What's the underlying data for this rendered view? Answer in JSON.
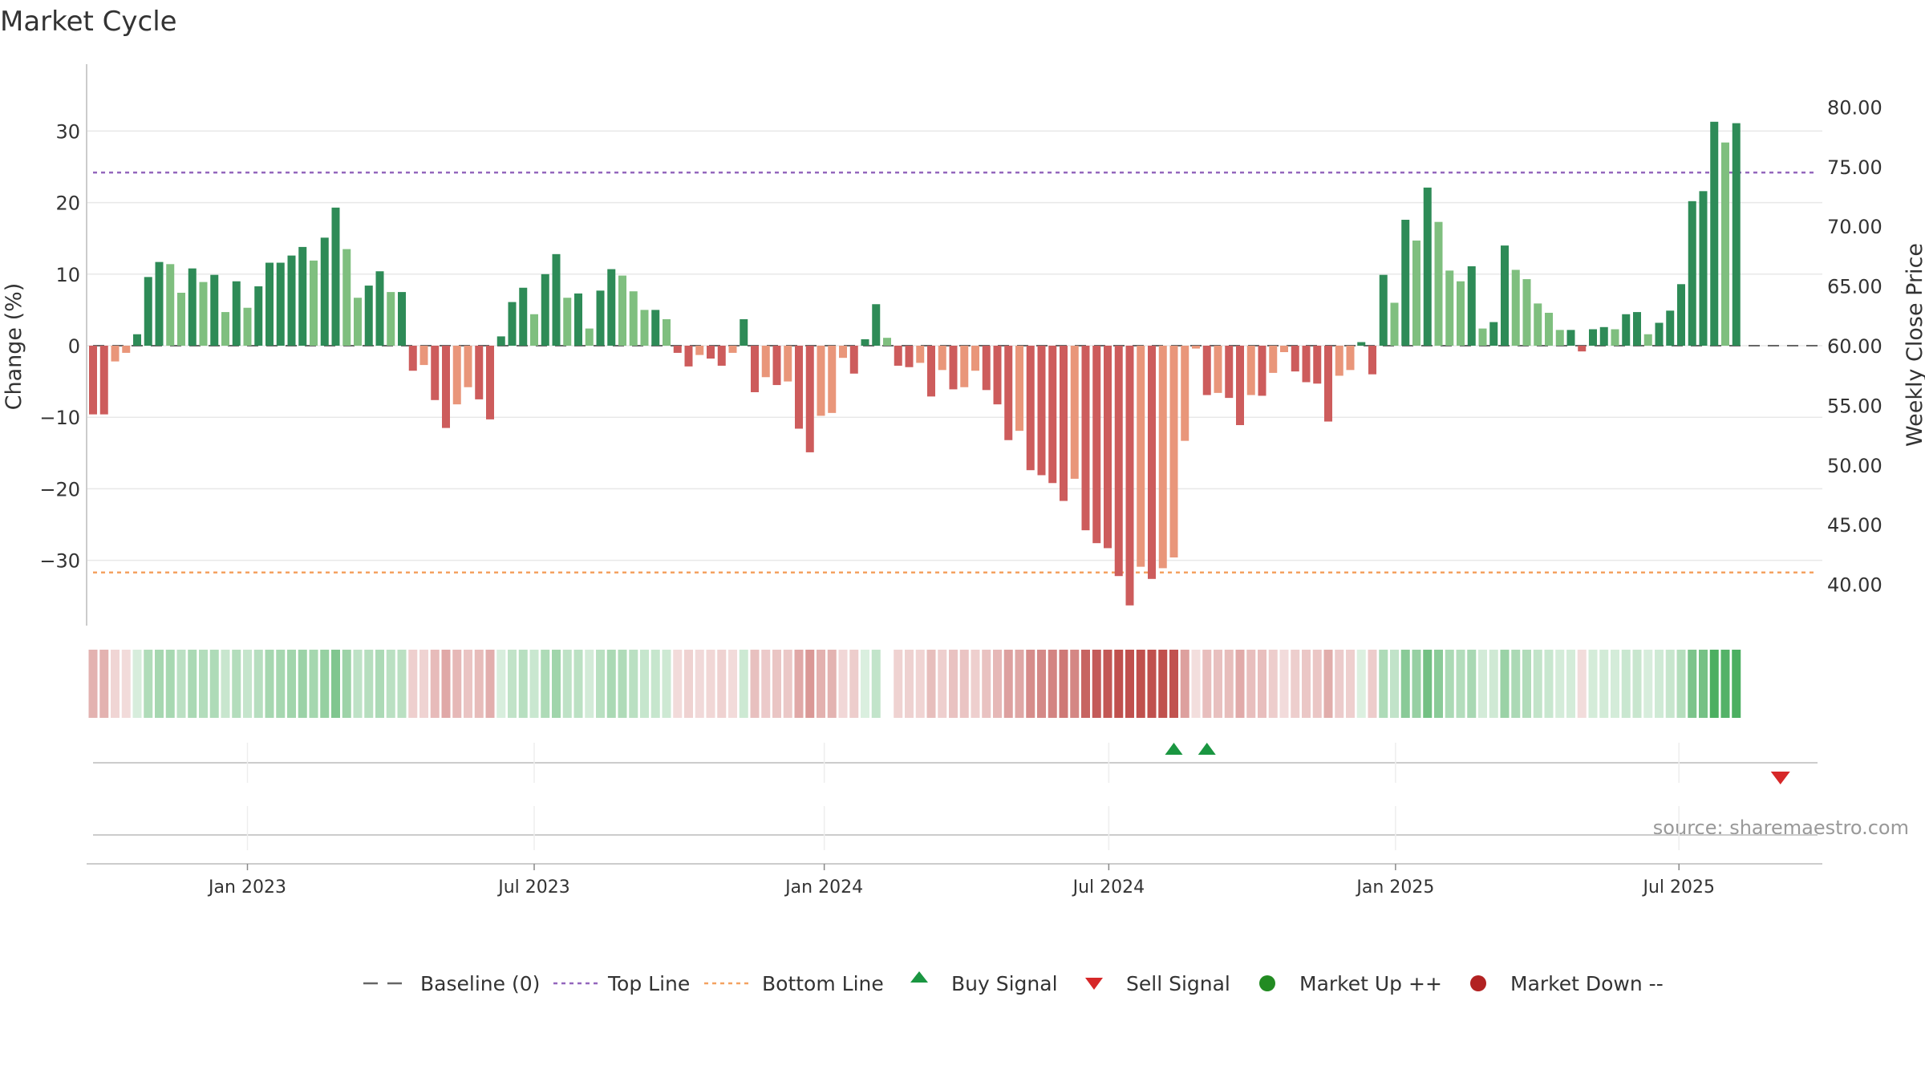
{
  "chart_data": {
    "type": "bar",
    "title": "Market Cycle",
    "ylabel_left": "Change (%)",
    "ylabel_right": "Weekly Close Price",
    "xlabel": "",
    "ylim_left": [
      -39,
      39
    ],
    "ylim_right": [
      37.0,
      82.0
    ],
    "y_ticks_left": [
      "30",
      "20",
      "10",
      "0",
      "−10",
      "−20",
      "−30"
    ],
    "y_tick_values_left": [
      30,
      20,
      10,
      0,
      -10,
      -20,
      -30
    ],
    "y_ticks_right": [
      "80.00",
      "75.00",
      "70.00",
      "65.00",
      "60.00",
      "55.00",
      "50.00",
      "45.00",
      "40.00"
    ],
    "y_tick_values_right": [
      80,
      75,
      70,
      65,
      60,
      55,
      50,
      45,
      40
    ],
    "x_tick_labels": [
      "Jan 2023",
      "Jul 2023",
      "Jan 2024",
      "Jul 2024",
      "Jan 2025",
      "Jul 2025"
    ],
    "x_tick_weeks": [
      14,
      40,
      66.3,
      92.1,
      118.1,
      143.8
    ],
    "grid": true,
    "reference_lines": [
      {
        "name": "Baseline (0)",
        "value": 0,
        "style": "dashed",
        "color": "#666666"
      },
      {
        "name": "Top Line",
        "value": 24.2,
        "style": "dotted",
        "color": "#9467bd"
      },
      {
        "name": "Bottom Line",
        "value": -31.7,
        "style": "dotted",
        "color": "#f4a261"
      }
    ],
    "series": [
      {
        "name": "Change (%)",
        "values": [
          -9.6,
          -9.6,
          -2.2,
          -1.0,
          1.6,
          9.6,
          11.7,
          11.4,
          7.4,
          10.8,
          8.9,
          9.9,
          4.7,
          9.0,
          5.3,
          8.3,
          11.6,
          11.6,
          12.6,
          13.8,
          11.9,
          15.1,
          19.3,
          13.5,
          6.7,
          8.4,
          10.4,
          7.5,
          7.5,
          -3.5,
          -2.7,
          -7.6,
          -11.5,
          -8.2,
          -5.8,
          -7.5,
          -10.3,
          1.3,
          6.1,
          8.1,
          4.4,
          10.0,
          12.8,
          6.7,
          7.3,
          2.4,
          7.7,
          10.7,
          9.8,
          7.6,
          5.0,
          5.0,
          3.7,
          -1.0,
          -2.9,
          -1.3,
          -1.8,
          -2.8,
          -1.0,
          3.7,
          -6.5,
          -4.4,
          -5.5,
          -5.0,
          -11.6,
          -14.9,
          -9.8,
          -9.4,
          -1.7,
          -3.9,
          0.9,
          5.8,
          1.1,
          -2.8,
          -3.0,
          -2.4,
          -7.1,
          -3.4,
          -6.1,
          -5.8,
          -3.5,
          -6.2,
          -8.2,
          -13.2,
          -11.9,
          -17.4,
          -18.1,
          -19.2,
          -21.7,
          -18.6,
          -25.8,
          -27.6,
          -28.3,
          -32.2,
          -36.3,
          -30.9,
          -32.6,
          -31.1,
          -29.6,
          -13.3,
          -0.4,
          -6.9,
          -6.6,
          -7.3,
          -11.1,
          -6.9,
          -7.0,
          -3.8,
          -0.9,
          -3.6,
          -5.1,
          -5.3,
          -10.6,
          -4.2,
          -3.4,
          0.5,
          -4.0,
          9.9,
          6.0,
          17.6,
          14.7,
          22.1,
          17.3,
          10.5,
          9.0,
          11.1,
          2.4,
          3.3,
          14.0,
          10.6,
          9.3,
          5.9,
          4.6,
          2.2,
          2.2,
          -0.8,
          2.3,
          2.6,
          2.3,
          4.4,
          4.7,
          1.6,
          3.2,
          4.9,
          8.6,
          20.2,
          21.6,
          31.3,
          28.4,
          31.1
        ]
      }
    ],
    "heat_strip": {
      "label": "",
      "values": [
        -9.6,
        -9.6,
        -2.2,
        -1.0,
        1.6,
        9.6,
        11.7,
        11.4,
        7.4,
        10.8,
        8.9,
        9.9,
        4.7,
        9.0,
        5.3,
        8.3,
        11.6,
        11.6,
        12.6,
        13.8,
        11.9,
        15.1,
        19.3,
        13.5,
        6.7,
        8.4,
        10.4,
        7.5,
        7.5,
        -3.5,
        -2.7,
        -7.6,
        -11.5,
        -8.2,
        -5.8,
        -7.5,
        -10.3,
        1.3,
        6.1,
        8.1,
        4.4,
        10.0,
        12.8,
        6.7,
        7.3,
        2.4,
        7.7,
        10.7,
        9.8,
        7.6,
        5.0,
        5.0,
        3.7,
        -1.0,
        -2.9,
        -1.3,
        -1.8,
        -2.8,
        -1.0,
        3.7,
        -6.5,
        -4.4,
        -5.5,
        -5.0,
        -11.6,
        -14.9,
        -9.8,
        -9.4,
        -1.7,
        -3.9,
        0.9,
        5.8,
        1.1,
        -2.8,
        -3.0,
        -2.4,
        -7.1,
        -3.4,
        -6.1,
        -5.8,
        -3.5,
        -6.2,
        -8.2,
        -13.2,
        -11.9,
        -17.4,
        -18.1,
        -19.2,
        -21.7,
        -18.6,
        -25.8,
        -27.6,
        -28.3,
        -32.2,
        -36.3,
        -30.9,
        -32.6,
        -31.1,
        -29.6,
        -13.3,
        -0.4,
        -6.9,
        -6.6,
        -7.3,
        -11.1,
        -6.9,
        -7.0,
        -3.8,
        -0.9,
        -3.6,
        -5.1,
        -5.3,
        -10.6,
        -4.2,
        -3.4,
        0.5,
        -4.0,
        9.9,
        6.0,
        17.6,
        14.7,
        22.1,
        17.3,
        10.5,
        9.0,
        11.1,
        2.4,
        3.3,
        14.0,
        10.6,
        9.3,
        5.9,
        4.6,
        2.2,
        2.2,
        -0.8,
        2.3,
        2.6,
        2.3,
        4.4,
        4.7,
        1.6,
        3.2,
        4.9,
        8.6,
        20.2,
        21.6,
        31.3,
        28.4,
        31.1
      ],
      "gap_week": 72
    },
    "signals": [
      {
        "type": "Buy Signal",
        "week": 98
      },
      {
        "type": "Buy Signal",
        "week": 101
      },
      {
        "type": "Sell Signal",
        "week": 153
      }
    ],
    "legend": {
      "placement": "bottom-center",
      "items": [
        {
          "label": "Baseline (0)",
          "marker": "dashed-line",
          "color": "#666666"
        },
        {
          "label": "Top Line",
          "marker": "dotted-line",
          "color": "#9467bd"
        },
        {
          "label": "Bottom Line",
          "marker": "dotted-line",
          "color": "#f4a261"
        },
        {
          "label": "Buy Signal",
          "marker": "triangle-up",
          "color": "#1a9641"
        },
        {
          "label": "Sell Signal",
          "marker": "triangle-down",
          "color": "#d62728"
        },
        {
          "label": "Market Up ++",
          "marker": "circle",
          "color": "#228b22"
        },
        {
          "label": "Market Down --",
          "marker": "circle",
          "color": "#b22222"
        }
      ]
    },
    "source": "source: sharemaestro.com",
    "colors": {
      "up_strong": "#2e8b57",
      "up_weak": "#7fbf7f",
      "down_strong": "#cd5c5c",
      "down_weak": "#e9967a",
      "strip_green": "#4caf61",
      "strip_red": "#c0504d",
      "buy": "#1a9641",
      "sell": "#d62728"
    }
  }
}
